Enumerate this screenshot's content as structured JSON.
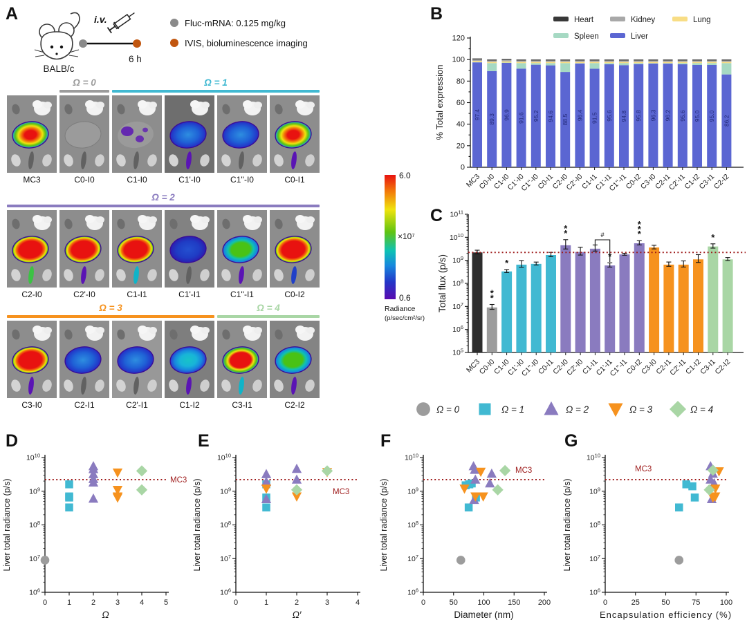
{
  "panel_letters": {
    "A": "A",
    "B": "B",
    "C": "C",
    "D": "D",
    "E": "E",
    "F": "F",
    "G": "G"
  },
  "panelA": {
    "schematic": {
      "strain": "BALB/c",
      "route": "i.v.",
      "time": "6 h",
      "dose_legend": [
        {
          "color": "#8a8a8a",
          "text": "Fluc-mRNA: 0.125 mg/kg"
        },
        {
          "color": "#c1560f",
          "text": "IVIS, bioluminescence imaging"
        }
      ]
    },
    "rows": [
      {
        "headers": [
          {
            "label": "Ω = 0",
            "color": "#9c9c9c",
            "start": 1,
            "span": 1
          },
          {
            "label": "Ω = 1",
            "color": "#41b9d2",
            "start": 2,
            "span": 4
          }
        ],
        "tiles": [
          {
            "label": "MC3",
            "heat": "warm",
            "spleen": "none"
          },
          {
            "label": "C0-I0",
            "heat": "none",
            "spleen": "none"
          },
          {
            "label": "C1-I0",
            "heat": "patch",
            "spleen": "none"
          },
          {
            "label": "C1'-I0",
            "heat": "blue",
            "spleen": "violet",
            "bg": "#6e6e6e"
          },
          {
            "label": "C1''-I0",
            "heat": "blue",
            "spleen": "none"
          },
          {
            "label": "C0-I1",
            "heat": "warm",
            "spleen": "violet"
          }
        ]
      },
      {
        "headers": [
          {
            "label": "Ω = 2",
            "color": "#8a7bbf",
            "start": 0,
            "span": 6
          }
        ],
        "tiles": [
          {
            "label": "C2-I0",
            "heat": "hot",
            "spleen": "green"
          },
          {
            "label": "C2'-I0",
            "heat": "hot",
            "spleen": "violet"
          },
          {
            "label": "C1-I1",
            "heat": "hot",
            "spleen": "cyan"
          },
          {
            "label": "C1'-I1",
            "heat": "deepblue",
            "spleen": "none",
            "bg": "#828282"
          },
          {
            "label": "C1''-I1",
            "heat": "green",
            "spleen": "violet"
          },
          {
            "label": "C0-I2",
            "heat": "hot",
            "spleen": "blue"
          }
        ]
      },
      {
        "headers": [
          {
            "label": "Ω = 3",
            "color": "#f6921e",
            "start": 0,
            "span": 4
          },
          {
            "label": "Ω = 4",
            "color": "#a9d6a5",
            "start": 4,
            "span": 2
          }
        ],
        "tiles": [
          {
            "label": "C3-I0",
            "heat": "hot",
            "spleen": "violet"
          },
          {
            "label": "C2-I1",
            "heat": "blue",
            "spleen": "none"
          },
          {
            "label": "C2'-I1",
            "heat": "blue",
            "spleen": "none",
            "bg": "#989898"
          },
          {
            "label": "C1-I2",
            "heat": "cyan",
            "spleen": "violet",
            "bg": "#7e7e7e"
          },
          {
            "label": "C3-I1",
            "heat": "hot2",
            "spleen": "cyan"
          },
          {
            "label": "C2-I2",
            "heat": "green",
            "spleen": "violet",
            "bg": "#848484"
          }
        ]
      }
    ],
    "colorbar": {
      "max": "6.0",
      "scale": "×10⁷",
      "min": "0.6",
      "caption_line1": "Radiance",
      "caption_line2": "(p/sec/cm²/sr)"
    }
  },
  "omega_legend": [
    {
      "label": "Ω = 0",
      "marker": "circle",
      "color": "#9c9c9c"
    },
    {
      "label": "Ω = 1",
      "marker": "square",
      "color": "#41b9d2"
    },
    {
      "label": "Ω = 2",
      "marker": "triangle",
      "color": "#8a7bbf"
    },
    {
      "label": "Ω = 3",
      "marker": "triangle-down",
      "color": "#f6921e"
    },
    {
      "label": "Ω = 4",
      "marker": "diamond",
      "color": "#a9d6a5"
    }
  ],
  "chart_data": [
    {
      "id": "B",
      "type": "bar",
      "stacked": true,
      "ylabel": "% Total expression",
      "ylim": [
        0,
        120
      ],
      "yticks": [
        0,
        20,
        40,
        60,
        80,
        100,
        120
      ],
      "categories": [
        "MC3",
        "C0-I0",
        "C1-I0",
        "C1'-I0",
        "C1''-I0",
        "C0-I1",
        "C2-I0",
        "C2'-I0",
        "C1-I1",
        "C1'-I1",
        "C1''-I1",
        "C0-I2",
        "C3-I0",
        "C2-I1",
        "C2'-I1",
        "C1-I2",
        "C3-I1",
        "C2-I2"
      ],
      "legend": [
        {
          "name": "Heart",
          "color": "#383838"
        },
        {
          "name": "Kidney",
          "color": "#a8a8a8"
        },
        {
          "name": "Lung",
          "color": "#f8dd85"
        },
        {
          "name": "Spleen",
          "color": "#a6d9c3"
        },
        {
          "name": "Liver",
          "color": "#5b66d2"
        }
      ],
      "liver_pct": [
        97.4,
        89.3,
        96.9,
        91.6,
        95.2,
        94.6,
        88.5,
        96.4,
        91.5,
        95.6,
        94.8,
        95.8,
        96.3,
        96.2,
        95.6,
        95.0,
        95.0,
        86.2
      ],
      "bar_labels": [
        "97.4",
        "89.3",
        "96.9",
        "91.6",
        "95.2",
        "94.6",
        "88.5",
        "96.4",
        "91.5",
        "95.6",
        "94.8",
        "95.8",
        "96.3",
        "96.2",
        "95.6",
        "95.0",
        "95.0",
        "86.2"
      ],
      "top_segments": {
        "lung": 1.1,
        "kidney": 1.3,
        "heart": 0.9
      }
    },
    {
      "id": "C",
      "type": "bar",
      "log": true,
      "ylabel": "Total flux (p/s)",
      "ylim_exp": [
        5,
        11
      ],
      "categories": [
        "MC3",
        "C0-I0",
        "C1-I0",
        "C1'-I0",
        "C1''-I0",
        "C0-I1",
        "C2-I0",
        "C2'-I0",
        "C1-I1",
        "C1'-I1",
        "C1''-I1",
        "C0-I2",
        "C3-I0",
        "C2-I1",
        "C2'-I1",
        "C1-I2",
        "C3-I1",
        "C2-I2"
      ],
      "values": [
        2200000000.0,
        9000000.0,
        330000000.0,
        650000000.0,
        700000000.0,
        1700000000.0,
        4500000000.0,
        2300000000.0,
        3200000000.0,
        600000000.0,
        1800000000.0,
        5500000000.0,
        3600000000.0,
        650000000.0,
        650000000.0,
        1100000000.0,
        4000000000.0,
        1100000000.0
      ],
      "err_factor": [
        1.25,
        1.35,
        1.2,
        1.5,
        1.2,
        1.3,
        1.75,
        1.6,
        1.45,
        1.3,
        1.12,
        1.3,
        1.25,
        1.3,
        1.45,
        1.6,
        1.3,
        1.2
      ],
      "colors": [
        "#2d2d2d",
        "#9c9c9c",
        "#41b9d2",
        "#41b9d2",
        "#41b9d2",
        "#41b9d2",
        "#8a7bbf",
        "#8a7bbf",
        "#8a7bbf",
        "#8a7bbf",
        "#8a7bbf",
        "#8a7bbf",
        "#f6921e",
        "#f6921e",
        "#f6921e",
        "#f6921e",
        "#a9d6a5",
        "#a9d6a5"
      ],
      "sig": [
        "",
        "**",
        "*",
        "",
        "",
        "",
        "**",
        "",
        "",
        "*",
        "",
        "***",
        "",
        "",
        "",
        "",
        "*",
        ""
      ],
      "bracket": {
        "from": 8,
        "to": 9,
        "label": "#"
      },
      "refline": {
        "value": 2200000000.0,
        "color": "#9e1b1b"
      }
    },
    {
      "id": "D",
      "type": "scatter",
      "xlabel": "Ω",
      "xlabel_italic": true,
      "xlim": [
        0,
        5
      ],
      "xticks": [
        0,
        1,
        2,
        3,
        4,
        5
      ],
      "ylabel": "Liver total radiance (p/s)",
      "ylim_exp": [
        6,
        10
      ],
      "refline": {
        "value": 2200000000.0,
        "label": "MC3",
        "color": "#9e1b1b"
      },
      "series": [
        {
          "name": "Ω = 0",
          "marker": "circle",
          "color": "#9c9c9c",
          "points": [
            [
              0,
              9000000.0
            ]
          ]
        },
        {
          "name": "Ω = 1",
          "marker": "square",
          "color": "#41b9d2",
          "points": [
            [
              1,
              330000000.0
            ],
            [
              1,
              650000000.0
            ],
            [
              1,
              700000000.0
            ],
            [
              1,
              1600000000.0
            ]
          ]
        },
        {
          "name": "Ω = 2",
          "marker": "triangle",
          "color": "#8a7bbf",
          "points": [
            [
              2,
              5500000000.0
            ],
            [
              2,
              4500000000.0
            ],
            [
              2,
              3200000000.0
            ],
            [
              2,
              2300000000.0
            ],
            [
              2,
              1800000000.0
            ],
            [
              2,
              600000000.0
            ]
          ]
        },
        {
          "name": "Ω = 3",
          "marker": "triangle-down",
          "color": "#f6921e",
          "points": [
            [
              3,
              3600000000.0
            ],
            [
              3,
              1100000000.0
            ],
            [
              3,
              700000000.0
            ],
            [
              3,
              650000000.0
            ]
          ]
        },
        {
          "name": "Ω = 4",
          "marker": "diamond",
          "color": "#a9d6a5",
          "points": [
            [
              4,
              4000000000.0
            ],
            [
              4,
              1100000000.0
            ]
          ]
        }
      ]
    },
    {
      "id": "E",
      "type": "scatter",
      "xlabel": "Ω′",
      "xlabel_italic": true,
      "xlim": [
        0,
        4
      ],
      "xticks": [
        0,
        1,
        2,
        3,
        4
      ],
      "ylabel": "Liver total radiance (p/s)",
      "ylim_exp": [
        6,
        10
      ],
      "refline": {
        "value": 2200000000.0,
        "label": "MC3",
        "color": "#9e1b1b"
      },
      "series": [
        {
          "name": "Ω = 1",
          "marker": "square",
          "color": "#41b9d2",
          "points": [
            [
              1,
              1600000000.0
            ],
            [
              1,
              650000000.0
            ],
            [
              1,
              330000000.0
            ]
          ]
        },
        {
          "name": "Ω = 2",
          "marker": "triangle",
          "color": "#8a7bbf",
          "points": [
            [
              1,
              3200000000.0
            ],
            [
              1,
              1900000000.0
            ],
            [
              1,
              580000000.0
            ],
            [
              2,
              4600000000.0
            ],
            [
              2,
              2200000000.0
            ]
          ]
        },
        {
          "name": "Ω = 3",
          "marker": "triangle-down",
          "color": "#f6921e",
          "points": [
            [
              1,
              1200000000.0
            ],
            [
              2,
              700000000.0
            ],
            [
              3,
              3700000000.0
            ]
          ]
        },
        {
          "name": "Ω = 4",
          "marker": "diamond",
          "color": "#a9d6a5",
          "points": [
            [
              2,
              1100000000.0
            ],
            [
              3,
              4000000000.0
            ]
          ]
        }
      ]
    },
    {
      "id": "F",
      "type": "scatter",
      "xlabel": "Diameter (nm)",
      "xlabel_italic": false,
      "xlim": [
        0,
        200
      ],
      "xticks": [
        0,
        50,
        100,
        150,
        200
      ],
      "ylabel": "Liver total radiance (p/s)",
      "ylim_exp": [
        6,
        10
      ],
      "refline": {
        "value": 2200000000.0,
        "label": "MC3",
        "color": "#9e1b1b"
      },
      "series": [
        {
          "name": "Ω = 0",
          "marker": "circle",
          "color": "#9c9c9c",
          "points": [
            [
              62,
              9000000.0
            ]
          ]
        },
        {
          "name": "Ω = 1",
          "marker": "square",
          "color": "#41b9d2",
          "points": [
            [
              70,
              1500000000.0
            ],
            [
              76,
              1600000000.0
            ],
            [
              80,
              1700000000.0
            ],
            [
              87,
              650000000.0
            ],
            [
              75,
              330000000.0
            ]
          ]
        },
        {
          "name": "Ω = 2",
          "marker": "triangle",
          "color": "#8a7bbf",
          "points": [
            [
              83,
              5500000000.0
            ],
            [
              85,
              4300000000.0
            ],
            [
              86,
              2200000000.0
            ],
            [
              113,
              3300000000.0
            ],
            [
              110,
              1700000000.0
            ],
            [
              84,
              550000000.0
            ]
          ]
        },
        {
          "name": "Ω = 3",
          "marker": "triangle-down",
          "color": "#f6921e",
          "points": [
            [
              95,
              3800000000.0
            ],
            [
              68,
              1200000000.0
            ],
            [
              86,
              700000000.0
            ],
            [
              99,
              700000000.0
            ]
          ]
        },
        {
          "name": "Ω = 4",
          "marker": "diamond",
          "color": "#a9d6a5",
          "points": [
            [
              135,
              4100000000.0
            ],
            [
              123,
              1100000000.0
            ]
          ]
        }
      ]
    },
    {
      "id": "G",
      "type": "scatter",
      "xlabel": "Encapsulation efficiency (%)",
      "xlabel_italic": false,
      "xlim": [
        0,
        100
      ],
      "xticks": [
        0,
        25,
        50,
        75,
        100
      ],
      "ylabel": "Liver total radiance (p/s)",
      "ylim_exp": [
        6,
        10
      ],
      "refline": {
        "value": 2200000000.0,
        "label": "MC3",
        "color": "#9e1b1b"
      },
      "series": [
        {
          "name": "Ω = 0",
          "marker": "circle",
          "color": "#9c9c9c",
          "points": [
            [
              61,
              9000000.0
            ]
          ]
        },
        {
          "name": "Ω = 1",
          "marker": "square",
          "color": "#41b9d2",
          "points": [
            [
              61,
              330000000.0
            ],
            [
              67,
              1600000000.0
            ],
            [
              72,
              1400000000.0
            ],
            [
              74,
              650000000.0
            ]
          ]
        },
        {
          "name": "Ω = 2",
          "marker": "triangle",
          "color": "#8a7bbf",
          "points": [
            [
              87,
              5500000000.0
            ],
            [
              89,
              3300000000.0
            ],
            [
              87,
              2200000000.0
            ],
            [
              90,
              1700000000.0
            ],
            [
              88,
              580000000.0
            ]
          ]
        },
        {
          "name": "Ω = 3",
          "marker": "triangle-down",
          "color": "#f6921e",
          "points": [
            [
              94,
              3900000000.0
            ],
            [
              91,
              1200000000.0
            ],
            [
              91,
              700000000.0
            ],
            [
              89,
              650000000.0
            ]
          ]
        },
        {
          "name": "Ω = 4",
          "marker": "diamond",
          "color": "#a9d6a5",
          "points": [
            [
              89,
              4200000000.0
            ],
            [
              86,
              1100000000.0
            ]
          ]
        }
      ]
    }
  ]
}
